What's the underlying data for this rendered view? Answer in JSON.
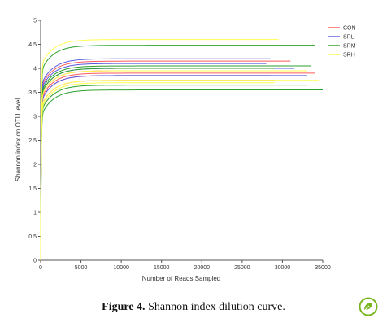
{
  "chart_data": {
    "type": "line",
    "xlabel": "Number of Reads Sampled",
    "ylabel": "Shannon index on OTU level",
    "xlim": [
      0,
      35000
    ],
    "ylim": [
      0,
      5
    ],
    "x_ticks": [
      "0",
      "5000",
      "10000",
      "15000",
      "20000",
      "25000",
      "30000",
      "35000"
    ],
    "y_ticks": [
      "0",
      "0.5",
      "1",
      "1.5",
      "2",
      "2.5",
      "3",
      "3.5",
      "4",
      "4.5",
      "5"
    ],
    "grid": false,
    "legend_position": "top-right",
    "legend": [
      {
        "name": "CON",
        "color": "#ff5a5a"
      },
      {
        "name": "SRL",
        "color": "#5a5ae0"
      },
      {
        "name": "SRM",
        "color": "#2ca02c"
      },
      {
        "name": "SRH",
        "color": "#ffff4d"
      }
    ],
    "series": [
      {
        "group": "CON",
        "color": "#ff5a5a",
        "max_reads": 31000,
        "plateau": 4.15
      },
      {
        "group": "CON",
        "color": "#ff5a5a",
        "max_reads": 30500,
        "plateau": 3.95
      },
      {
        "group": "CON",
        "color": "#ff5a5a",
        "max_reads": 34000,
        "plateau": 3.9
      },
      {
        "group": "CON",
        "color": "#ff5a5a",
        "max_reads": 28500,
        "plateau": 3.85
      },
      {
        "group": "CON",
        "color": "#ff5a5a",
        "max_reads": 29000,
        "plateau": 3.75
      },
      {
        "group": "SRL",
        "color": "#5a5ae0",
        "max_reads": 28500,
        "plateau": 4.2
      },
      {
        "group": "SRL",
        "color": "#5a5ae0",
        "max_reads": 28000,
        "plateau": 4.1
      },
      {
        "group": "SRL",
        "color": "#5a5ae0",
        "max_reads": 31500,
        "plateau": 4.0
      },
      {
        "group": "SRL",
        "color": "#5a5ae0",
        "max_reads": 33000,
        "plateau": 3.85
      },
      {
        "group": "SRM",
        "color": "#2ca02c",
        "max_reads": 34000,
        "plateau": 4.48
      },
      {
        "group": "SRM",
        "color": "#2ca02c",
        "max_reads": 33500,
        "plateau": 4.05
      },
      {
        "group": "SRM",
        "color": "#2ca02c",
        "max_reads": 29000,
        "plateau": 4.0
      },
      {
        "group": "SRM",
        "color": "#2ca02c",
        "max_reads": 33000,
        "plateau": 3.65
      },
      {
        "group": "SRM",
        "color": "#2ca02c",
        "max_reads": 35000,
        "plateau": 3.55
      },
      {
        "group": "SRH",
        "color": "#ffff4d",
        "max_reads": 29500,
        "plateau": 4.6
      },
      {
        "group": "SRH",
        "color": "#ffff4d",
        "max_reads": 33000,
        "plateau": 3.95
      },
      {
        "group": "SRH",
        "color": "#ffff4d",
        "max_reads": 34500,
        "plateau": 3.75
      },
      {
        "group": "SRH",
        "color": "#ffff4d",
        "max_reads": 29000,
        "plateau": 3.7
      }
    ]
  },
  "caption": {
    "label": "Figure 4.",
    "text": "Shannon index dilution curve."
  },
  "badge_icon": "plant-leaf-icon",
  "badge_color": "#7ab51d"
}
